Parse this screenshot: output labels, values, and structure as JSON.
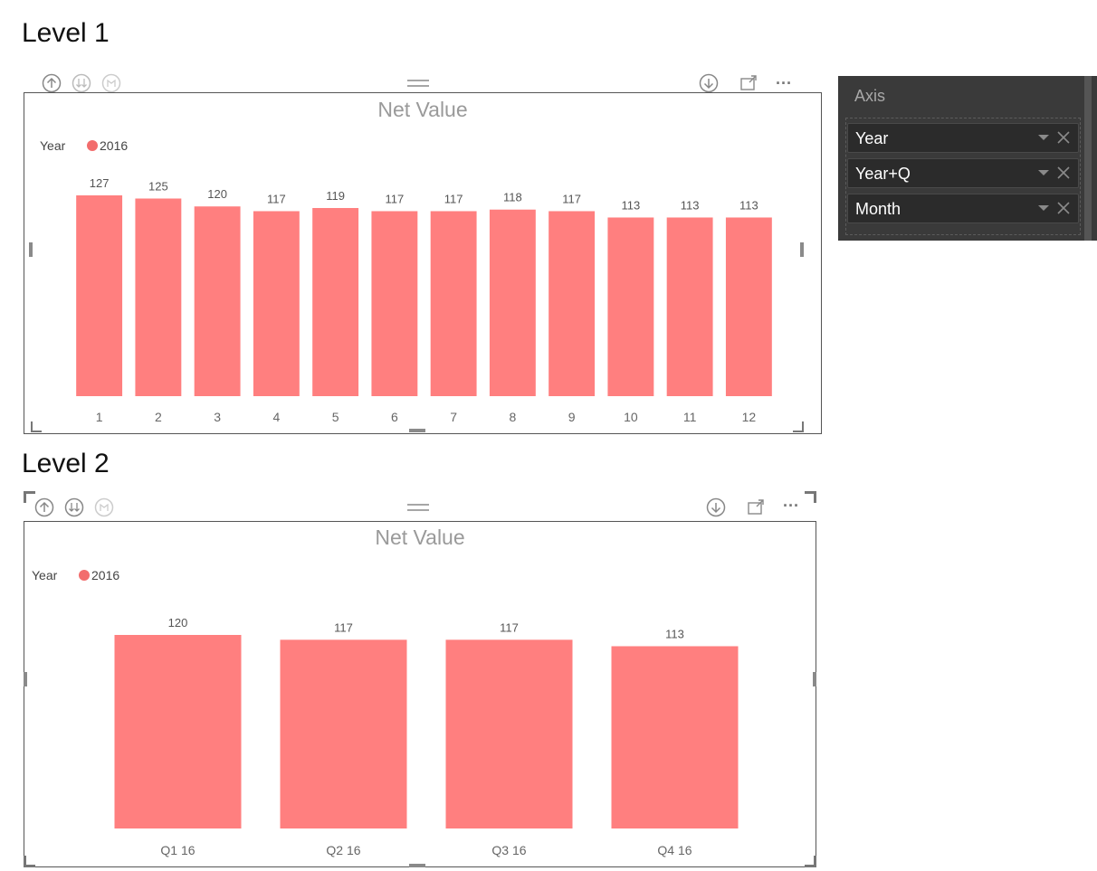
{
  "headings": {
    "level1": "Level 1",
    "level2": "Level 2"
  },
  "visual_header": {
    "icons": [
      "drill-up-icon",
      "expand-all-down-icon",
      "drill-down-icon",
      "more-lines-icon",
      "drill-mode-icon",
      "focus-mode-icon",
      "more-options-icon"
    ],
    "more_options_label": "···"
  },
  "field_panel": {
    "title": "Axis",
    "fields": [
      {
        "label": "Year"
      },
      {
        "label": "Year+Q"
      },
      {
        "label": "Month"
      }
    ]
  },
  "colors": {
    "bar": "#ff7f7f",
    "legend_dot": "#f26d6d"
  },
  "chart_data": [
    {
      "type": "bar",
      "title": "Net Value",
      "legend_title": "Year",
      "series": [
        {
          "name": "2016",
          "values": [
            127,
            125,
            120,
            117,
            119,
            117,
            117,
            118,
            117,
            113,
            113,
            113
          ]
        }
      ],
      "categories": [
        "1",
        "2",
        "3",
        "4",
        "5",
        "6",
        "7",
        "8",
        "9",
        "10",
        "11",
        "12"
      ],
      "ylim": [
        0,
        127
      ],
      "xlabel": "",
      "ylabel": "",
      "grid": false,
      "legend_position": "top-left"
    },
    {
      "type": "bar",
      "title": "Net Value",
      "legend_title": "Year",
      "series": [
        {
          "name": "2016",
          "values": [
            120,
            117,
            117,
            113
          ]
        }
      ],
      "categories": [
        "Q1 16",
        "Q2 16",
        "Q3 16",
        "Q4 16"
      ],
      "ylim": [
        0,
        120
      ],
      "xlabel": "",
      "ylabel": "",
      "grid": false,
      "legend_position": "top-left"
    }
  ]
}
